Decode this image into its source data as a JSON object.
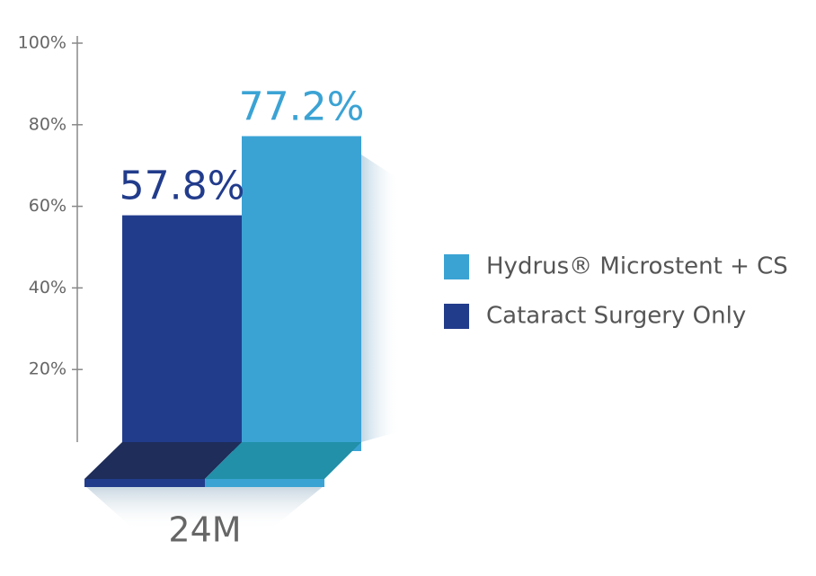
{
  "chart_data": {
    "type": "bar",
    "categories": [
      "24M"
    ],
    "series": [
      {
        "name": "Hydrus® Microstent + CS",
        "color": "#3ba3d4",
        "values": [
          77.2
        ],
        "value_labels": [
          "77.2%"
        ]
      },
      {
        "name": "Cataract Surgery Only",
        "color": "#223c8c",
        "values": [
          57.8
        ],
        "value_labels": [
          "57.8%"
        ]
      }
    ],
    "ylim": [
      0,
      100
    ],
    "yticks": [
      {
        "value": 20,
        "label": "20%"
      },
      {
        "value": 40,
        "label": "40%"
      },
      {
        "value": 60,
        "label": "60%"
      },
      {
        "value": 80,
        "label": "80%"
      },
      {
        "value": 100,
        "label": "100%"
      }
    ]
  }
}
